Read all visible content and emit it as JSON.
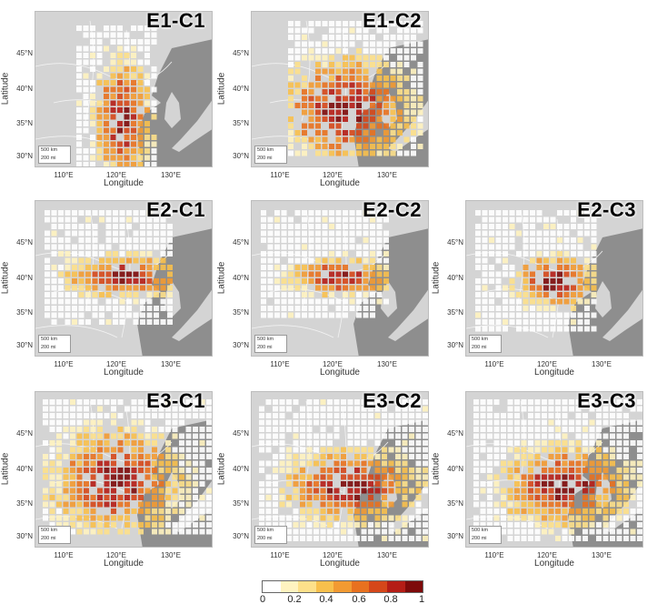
{
  "panels": [
    {
      "title": "E1-C1",
      "lat_ticks": [
        "45°N",
        "40°N",
        "35°N",
        "30°N"
      ],
      "lon_ticks": [
        "110°E",
        "120°E",
        "130°E"
      ],
      "xlabel": "Longitude",
      "ylabel": "Latitude",
      "scale": [
        "500 km",
        "200 mi"
      ]
    },
    {
      "title": "E1-C2",
      "lat_ticks": [
        "45°N",
        "40°N",
        "35°N",
        "30°N"
      ],
      "lon_ticks": [
        "110°E",
        "120°E",
        "130°E"
      ],
      "xlabel": "Longitude",
      "ylabel": "Latitude",
      "scale": [
        "500 km",
        "200 mi"
      ]
    },
    {
      "title": "E2-C1",
      "lat_ticks": [
        "45°N",
        "40°N",
        "35°N",
        "30°N"
      ],
      "lon_ticks": [
        "110°E",
        "120°E",
        "130°E"
      ],
      "xlabel": "Longitude",
      "ylabel": "Latitude",
      "scale": [
        "500 km",
        "200 mi"
      ]
    },
    {
      "title": "E2-C2",
      "lat_ticks": [
        "45°N",
        "40°N",
        "35°N",
        "30°N"
      ],
      "lon_ticks": [
        "110°E",
        "120°E",
        "130°E"
      ],
      "xlabel": "Longitude",
      "ylabel": "Latitude",
      "scale": [
        "500 km",
        "200 mi"
      ]
    },
    {
      "title": "E2-C3",
      "lat_ticks": [
        "45°N",
        "40°N",
        "35°N",
        "30°N"
      ],
      "lon_ticks": [
        "110°E",
        "120°E",
        "130°E"
      ],
      "xlabel": "Longitude",
      "ylabel": "Latitude",
      "scale": [
        "500 km",
        "200 mi"
      ]
    },
    {
      "title": "E3-C1",
      "lat_ticks": [
        "45°N",
        "40°N",
        "35°N",
        "30°N"
      ],
      "lon_ticks": [
        "110°E",
        "120°E",
        "130°E"
      ],
      "xlabel": "Longitude",
      "ylabel": "Latitude",
      "scale": [
        "500 km",
        "200 mi"
      ]
    },
    {
      "title": "E3-C2",
      "lat_ticks": [
        "45°N",
        "40°N",
        "35°N",
        "30°N"
      ],
      "lon_ticks": [
        "110°E",
        "120°E",
        "130°E"
      ],
      "xlabel": "Longitude",
      "ylabel": "Latitude",
      "scale": [
        "500 km",
        "200 mi"
      ]
    },
    {
      "title": "E3-C3",
      "lat_ticks": [
        "45°N",
        "40°N",
        "35°N",
        "30°N"
      ],
      "lon_ticks": [
        "110°E",
        "120°E",
        "130°E"
      ],
      "xlabel": "Longitude",
      "ylabel": "Latitude",
      "scale": [
        "500 km",
        "200 mi"
      ]
    }
  ],
  "colorbar": {
    "ticks": [
      "0",
      "0.2",
      "0.4",
      "0.6",
      "0.8",
      "1"
    ],
    "colors": [
      "#ffffff",
      "#fff3c0",
      "#fde08a",
      "#f8c04c",
      "#f29a32",
      "#e8711f",
      "#d5471a",
      "#b51d16",
      "#7d0a0a"
    ]
  },
  "colors": {
    "land": "#d4d4d4",
    "sea": "#8e8e8e",
    "border": "#f2f2f2"
  }
}
